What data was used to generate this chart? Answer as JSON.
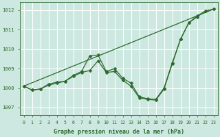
{
  "xlabel": "Graphe pression niveau de la mer (hPa)",
  "background_color": "#cce8e0",
  "grid_color": "#ffffff",
  "line_color": "#2d6a2d",
  "ylim": [
    1006.6,
    1012.4
  ],
  "xlim": [
    -0.5,
    23.5
  ],
  "yticks": [
    1007,
    1008,
    1009,
    1010,
    1011,
    1012
  ],
  "xticks": [
    0,
    1,
    2,
    3,
    4,
    5,
    6,
    7,
    8,
    9,
    10,
    11,
    12,
    13,
    14,
    15,
    16,
    17,
    18,
    19,
    20,
    21,
    22,
    23
  ],
  "line1_x": [
    0,
    23
  ],
  "line1_y": [
    1008.1,
    1012.05
  ],
  "line2_x": [
    0,
    1,
    2,
    3,
    4,
    5,
    6,
    7,
    8,
    9,
    10,
    11,
    12,
    13,
    14,
    15,
    16,
    17,
    18,
    19,
    20,
    21,
    22,
    23
  ],
  "line2_y": [
    1008.1,
    1007.9,
    1007.95,
    1008.2,
    1008.3,
    1008.35,
    1008.65,
    1008.85,
    1009.65,
    1009.7,
    1008.85,
    1009.0,
    1008.5,
    1008.25,
    1007.55,
    1007.45,
    1007.42,
    1008.0,
    1009.3,
    1010.5,
    1011.35,
    1011.7,
    1011.95,
    1012.05
  ],
  "line3_x": [
    0,
    1,
    2,
    3,
    4,
    5,
    6,
    7,
    8,
    9,
    10,
    11,
    12,
    13,
    14,
    15,
    16,
    17,
    18,
    19,
    20,
    21,
    22,
    23
  ],
  "line3_y": [
    1008.1,
    1007.9,
    1007.95,
    1008.15,
    1008.25,
    1008.35,
    1008.6,
    1008.8,
    1008.9,
    1009.4,
    1008.8,
    1008.85,
    1008.4,
    1008.1,
    1007.5,
    1007.42,
    1007.38,
    1007.95,
    1009.25,
    1010.5,
    1011.35,
    1011.65,
    1011.95,
    1012.05
  ]
}
